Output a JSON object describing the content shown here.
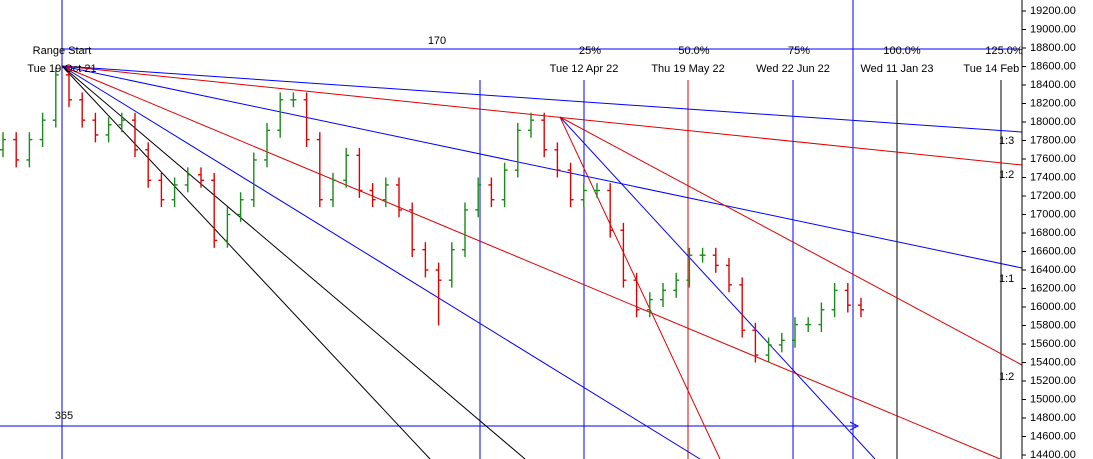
{
  "chart_data": {
    "type": "ohlc",
    "open": [
      17700,
      17810,
      17590,
      17810,
      18020,
      18510,
      18240,
      18020,
      17860,
      17970,
      18020,
      17700,
      17370,
      17160,
      17320,
      17430,
      17370,
      16720,
      17000,
      17160,
      17590,
      17910,
      18240,
      18240,
      17810,
      17160,
      17370,
      17640,
      17260,
      17160,
      17320,
      17050,
      16620,
      16400,
      16290,
      16620,
      17050,
      17320,
      17160,
      17480,
      17910,
      18020,
      17700,
      17480,
      17160,
      17260,
      17260,
      16830,
      16290,
      15970,
      16080,
      16180,
      16290,
      16560,
      16560,
      16450,
      16240,
      15750,
      15480,
      15590,
      15640,
      15810,
      15810,
      15970,
      16180,
      16020
    ],
    "high": [
      17890,
      17890,
      17890,
      18100,
      18590,
      18590,
      18320,
      18100,
      18050,
      18100,
      18100,
      17780,
      17450,
      17400,
      17510,
      17510,
      17450,
      17080,
      17240,
      17670,
      17990,
      18320,
      18320,
      18320,
      17890,
      17450,
      17720,
      17720,
      17340,
      17400,
      17400,
      17130,
      16700,
      16480,
      16700,
      17130,
      17400,
      17400,
      17560,
      17990,
      18100,
      18100,
      17780,
      17560,
      17340,
      17340,
      17340,
      16910,
      16370,
      16160,
      16260,
      16370,
      16640,
      16640,
      16640,
      16530,
      16320,
      15830,
      15670,
      15720,
      15890,
      15890,
      16050,
      16260,
      16260,
      16100
    ],
    "low": [
      17620,
      17510,
      17510,
      17730,
      17940,
      18160,
      17940,
      17780,
      17780,
      17890,
      17620,
      17290,
      17080,
      17080,
      17240,
      17290,
      16640,
      16640,
      16920,
      17080,
      17510,
      17830,
      18160,
      17730,
      17080,
      17080,
      17290,
      17180,
      17080,
      17080,
      16970,
      16540,
      16320,
      15800,
      16210,
      16540,
      16970,
      17080,
      17080,
      17400,
      17830,
      17620,
      17400,
      17080,
      17080,
      17180,
      16750,
      16210,
      15890,
      15890,
      16000,
      16100,
      16210,
      16480,
      16370,
      16160,
      15670,
      15400,
      15400,
      15510,
      15560,
      15730,
      15730,
      15890,
      15940,
      15890
    ],
    "close": [
      17810,
      17590,
      17810,
      18020,
      18510,
      18240,
      18020,
      17860,
      17970,
      18020,
      17700,
      17370,
      17160,
      17320,
      17430,
      17370,
      16720,
      17000,
      17160,
      17590,
      17910,
      18240,
      18240,
      17810,
      17160,
      17370,
      17640,
      17260,
      17160,
      17320,
      17050,
      16620,
      16400,
      16290,
      16620,
      17050,
      17320,
      17160,
      17480,
      17910,
      18020,
      17700,
      17480,
      17160,
      17260,
      17260,
      16830,
      16290,
      15970,
      16080,
      16180,
      16290,
      16560,
      16560,
      16450,
      16240,
      15750,
      15480,
      15590,
      15640,
      15810,
      15810,
      15970,
      16180,
      16020,
      15970
    ],
    "up_color": "#1a8a1a",
    "down_color": "#e00000",
    "ylim": [
      14357,
      19319
    ],
    "yticks": [
      {
        "value": 19200,
        "label": "19200.00"
      },
      {
        "value": 19000,
        "label": "19000.00"
      },
      {
        "value": 18800,
        "label": "18800.00"
      },
      {
        "value": 18600,
        "label": "18600.00"
      },
      {
        "value": 18400,
        "label": "18400.00"
      },
      {
        "value": 18200,
        "label": "18200.00"
      },
      {
        "value": 18000,
        "label": "18000.00"
      },
      {
        "value": 17800,
        "label": "17800.00"
      },
      {
        "value": 17600,
        "label": "17600.00"
      },
      {
        "value": 17400,
        "label": "17400.00"
      },
      {
        "value": 17200,
        "label": "17200.00"
      },
      {
        "value": 17000,
        "label": "17000.00"
      },
      {
        "value": 16800,
        "label": "16800.00"
      },
      {
        "value": 16600,
        "label": "16600.00"
      },
      {
        "value": 16400,
        "label": "16400.00"
      },
      {
        "value": 16200,
        "label": "16200.00"
      },
      {
        "value": 16000,
        "label": "16000.00"
      },
      {
        "value": 15800,
        "label": "15800.00"
      },
      {
        "value": 15600,
        "label": "15600.00"
      },
      {
        "value": 15400,
        "label": "15400.00"
      },
      {
        "value": 15200,
        "label": "15200.00"
      },
      {
        "value": 15000,
        "label": "15000.00"
      },
      {
        "value": 14800,
        "label": "14800.00"
      },
      {
        "value": 14600,
        "label": "14600.00"
      },
      {
        "value": 14400,
        "label": "14400.00"
      }
    ],
    "annotations": [
      "Range Start",
      "Tue 19 Oct 21",
      "170",
      "25%",
      "Tue 12 Apr 22",
      "50.0%",
      "Thu 19 May 22",
      "75%",
      "Wed 22 Jun 22",
      "100.0%",
      "Wed 11 Jan 23",
      "125.0%",
      "Tue 14 Feb 23",
      "365",
      "1:3",
      "1:2",
      "1:1",
      "1:2"
    ]
  }
}
